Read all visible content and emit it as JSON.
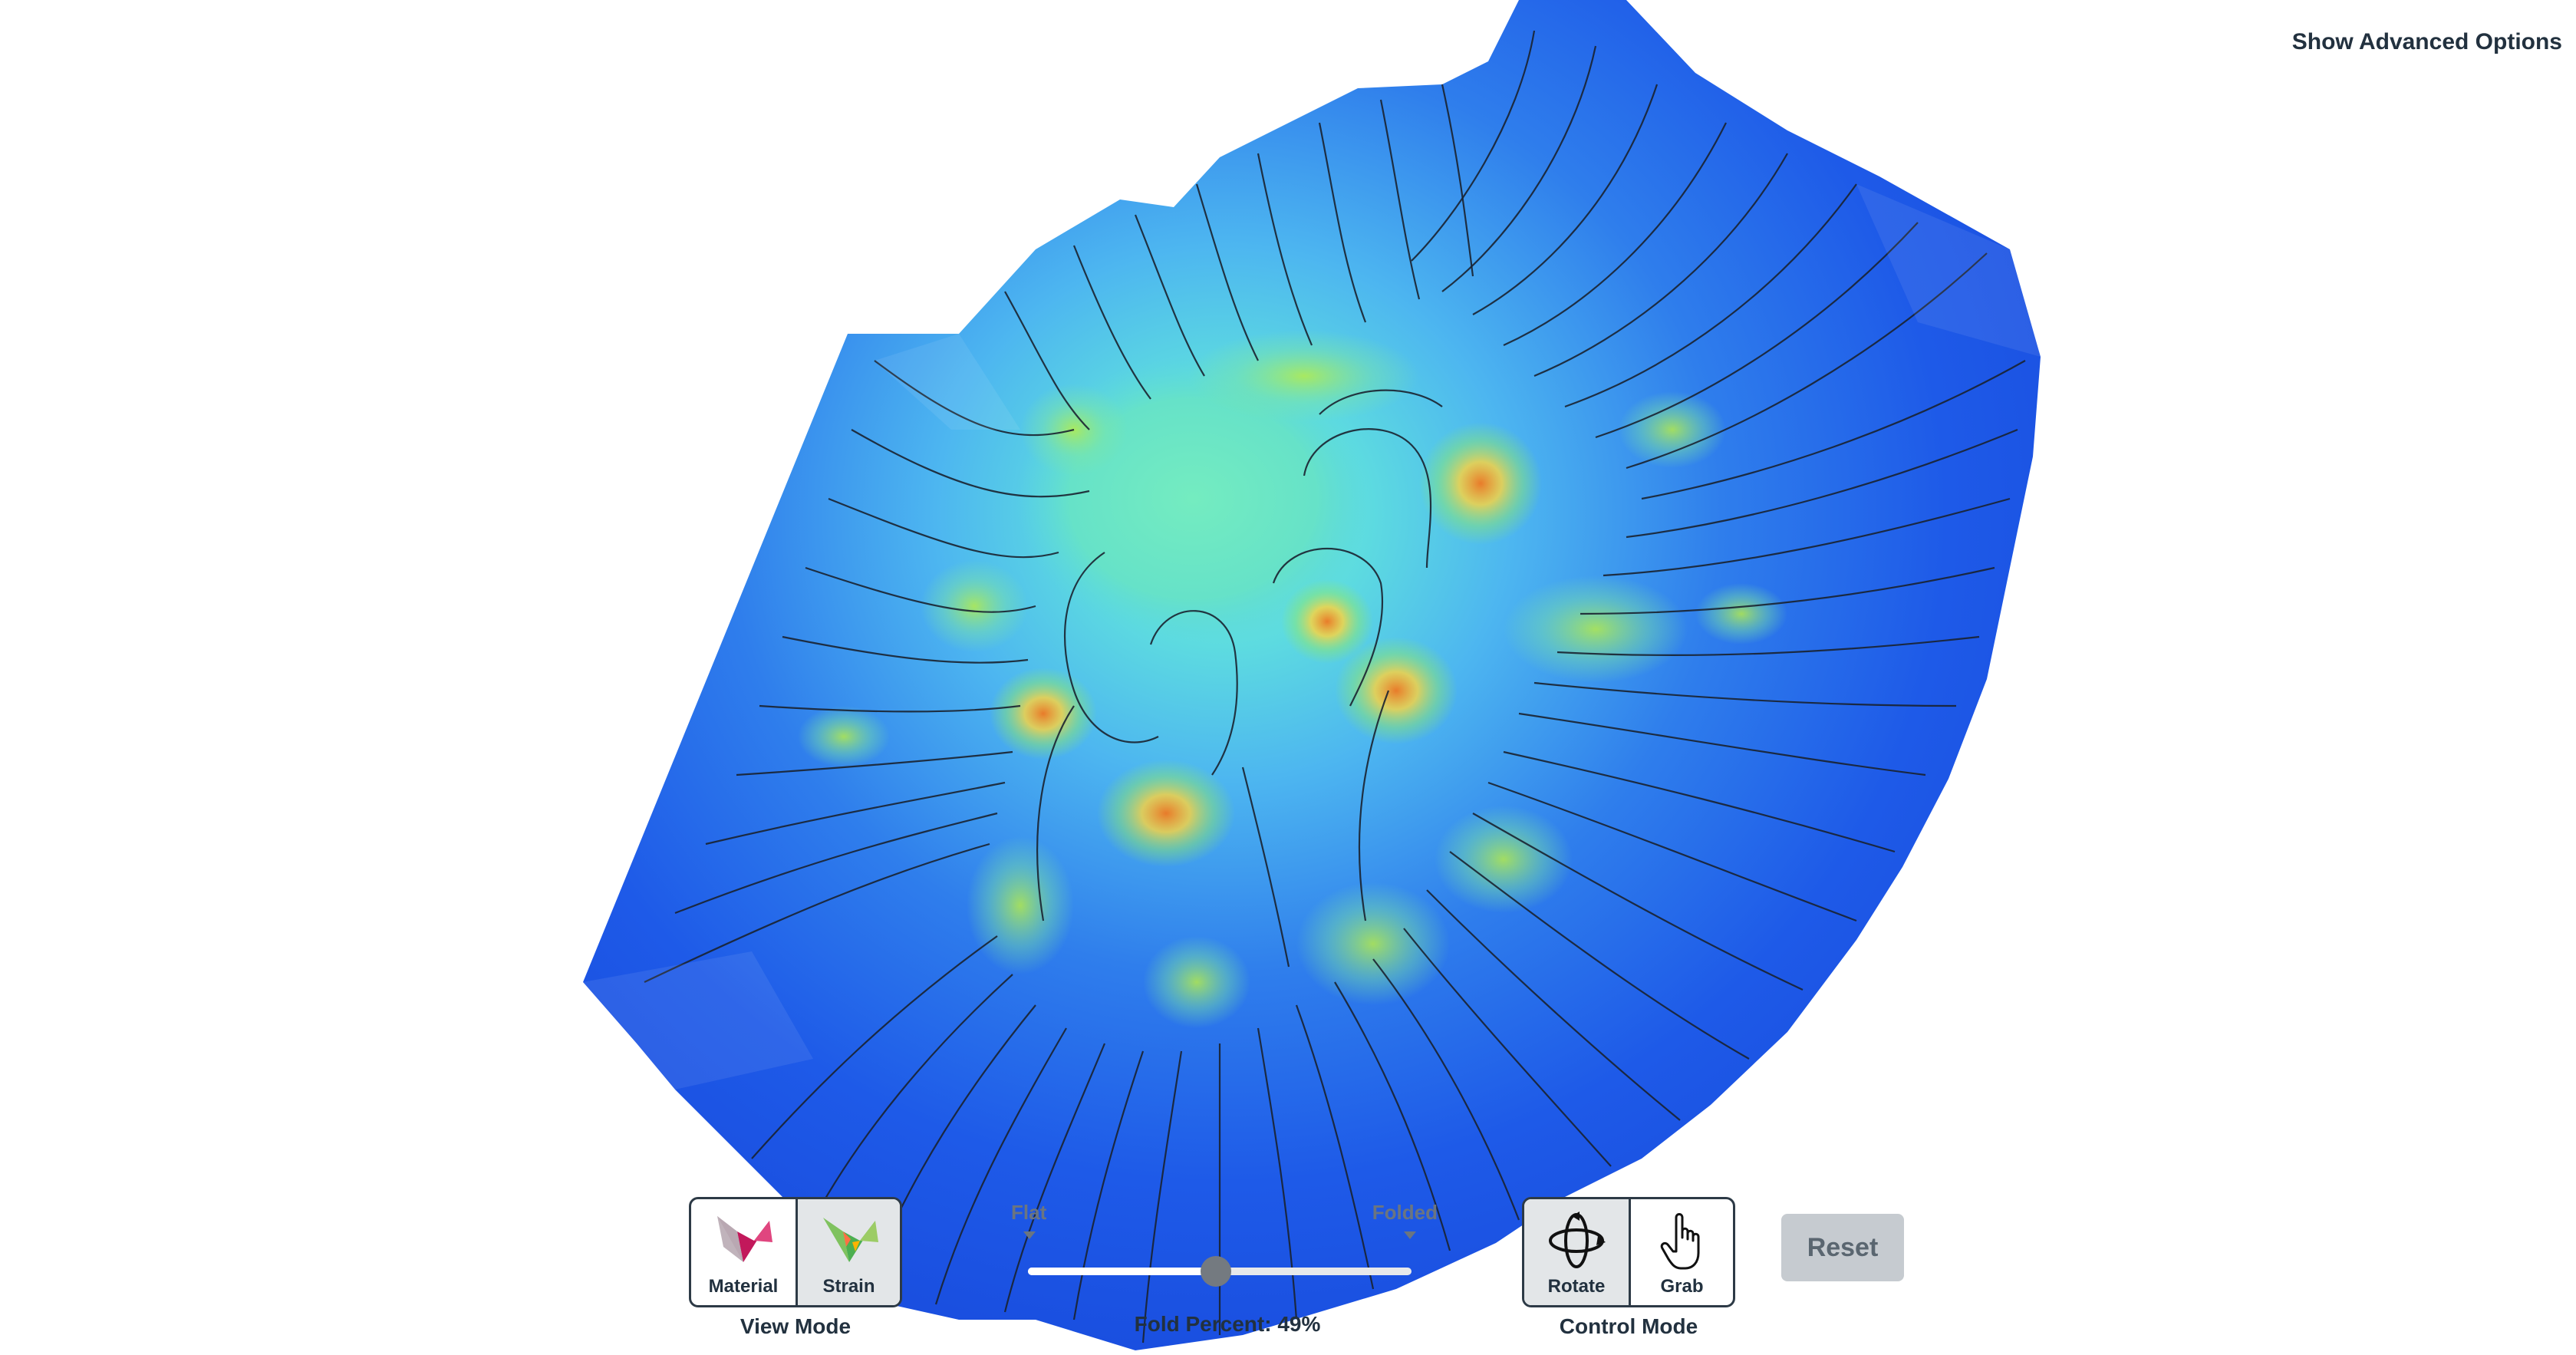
{
  "header": {
    "advanced_options_label": "Show Advanced Options"
  },
  "view_mode": {
    "caption": "View Mode",
    "buttons": [
      {
        "label": "Material",
        "icon": "material-icon",
        "selected": false
      },
      {
        "label": "Strain",
        "icon": "strain-icon",
        "selected": true
      }
    ]
  },
  "fold_slider": {
    "left_label": "Flat",
    "right_label": "Folded",
    "caption": "Fold Percent: 49%",
    "value_percent": 49
  },
  "control_mode": {
    "caption": "Control Mode",
    "buttons": [
      {
        "label": "Rotate",
        "icon": "rotate-icon",
        "selected": true
      },
      {
        "label": "Grab",
        "icon": "grab-hand-icon",
        "selected": false
      }
    ]
  },
  "reset": {
    "label": "Reset"
  },
  "colors": {
    "strain_low": "#1e5ae8",
    "strain_mid": "#56dde6",
    "strain_high": "#ffcf3a",
    "strain_peak": "#f07820",
    "crease_line": "#1a2230",
    "text_dark": "#22313f",
    "reset_bg": "#c6cbd0"
  }
}
